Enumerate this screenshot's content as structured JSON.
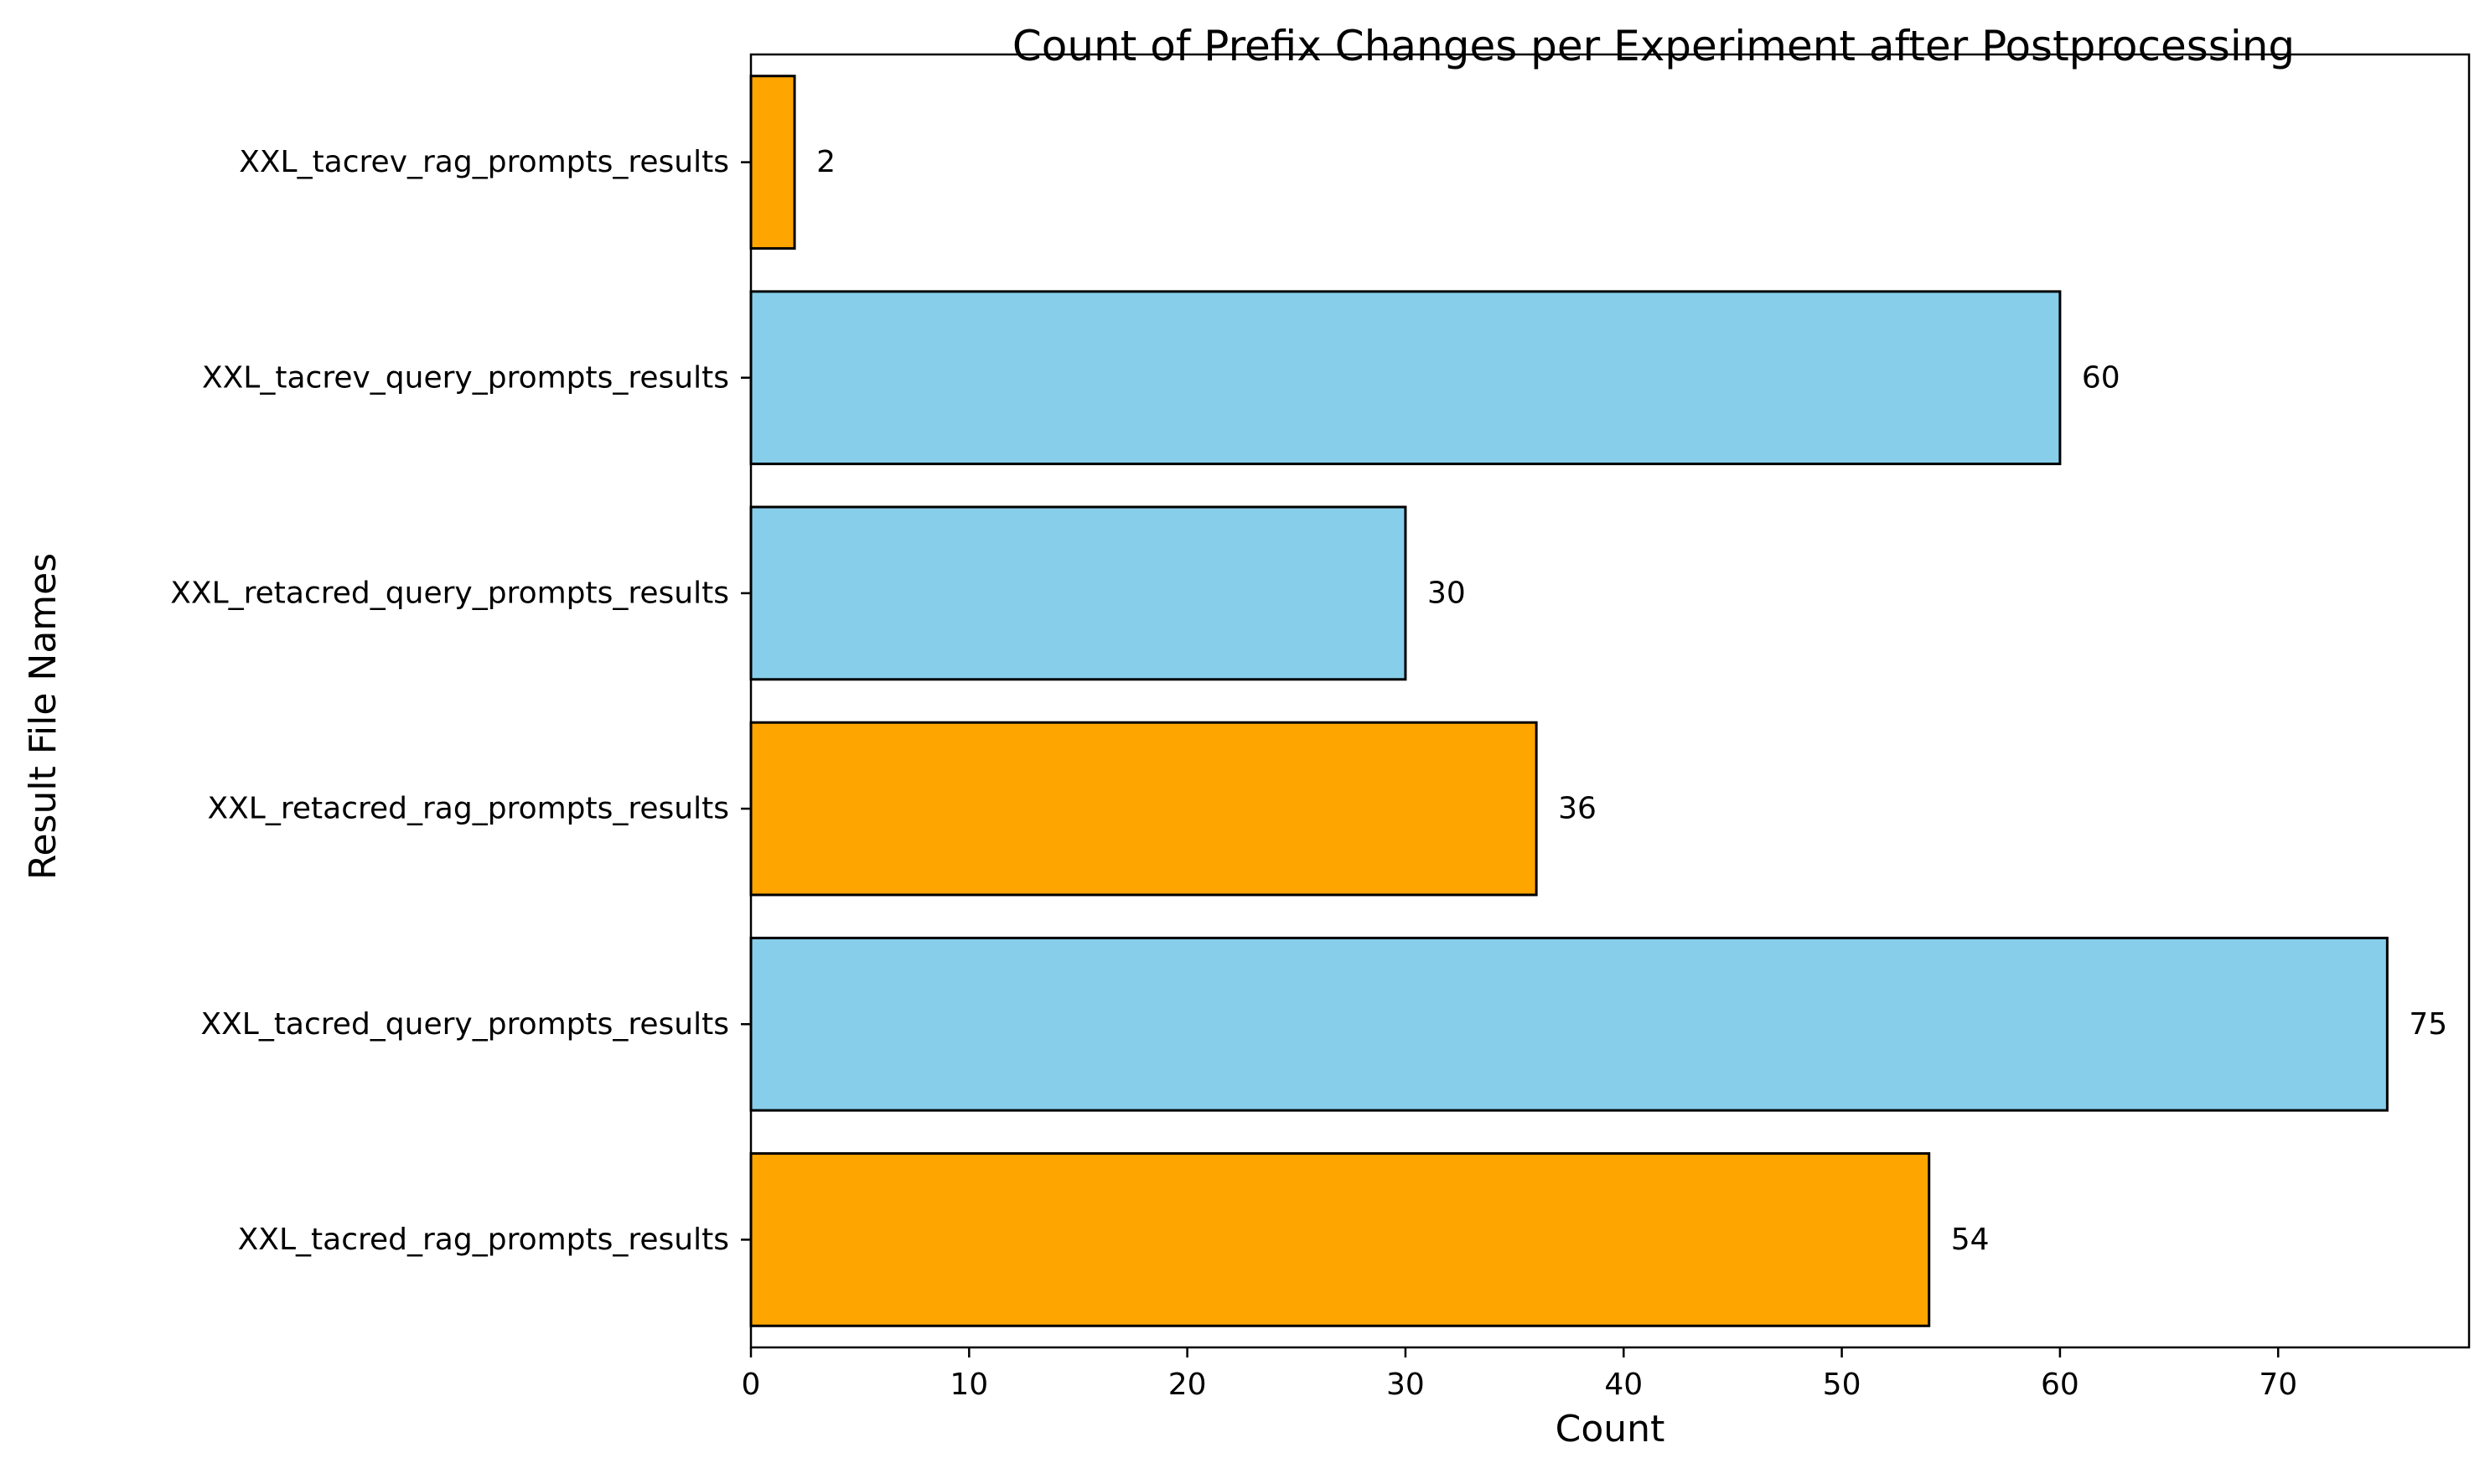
{
  "chart_data": {
    "type": "bar",
    "orientation": "horizontal",
    "title": "Count of Prefix Changes per Experiment after Postprocessing",
    "xlabel": "Count",
    "ylabel": "Result File Names",
    "categories": [
      "XXL_tacred_rag_prompts_results",
      "XXL_tacred_query_prompts_results",
      "XXL_retacred_rag_prompts_results",
      "XXL_retacred_query_prompts_results",
      "XXL_tacrev_query_prompts_results",
      "XXL_tacrev_rag_prompts_results"
    ],
    "values": [
      54,
      75,
      36,
      30,
      60,
      2
    ],
    "data_labels": [
      "54",
      "75",
      "36",
      "30",
      "60",
      "2"
    ],
    "bar_colors": [
      "#FFA500",
      "#87CEEB",
      "#FFA500",
      "#87CEEB",
      "#87CEEB",
      "#FFA500"
    ],
    "edge_color": "#000000",
    "xlim": [
      0,
      78.75
    ],
    "x_ticks": [
      0,
      10,
      20,
      30,
      40,
      50,
      60,
      70
    ],
    "x_tick_labels": [
      "0",
      "10",
      "20",
      "30",
      "40",
      "50",
      "60",
      "70"
    ],
    "grid": false,
    "legend": "none"
  }
}
